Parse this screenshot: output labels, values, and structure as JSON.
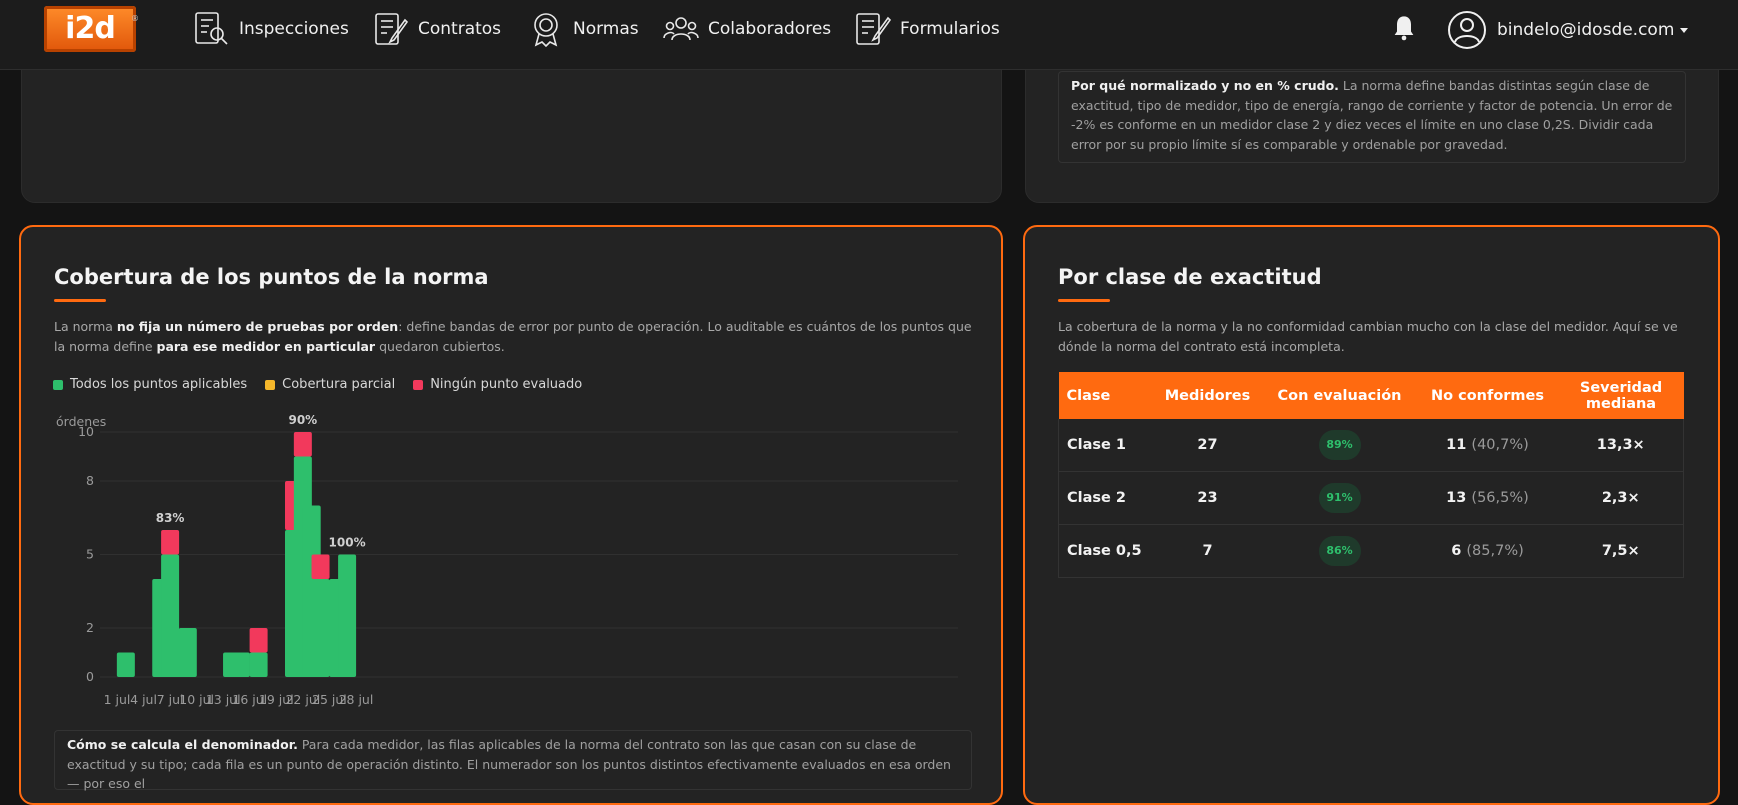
{
  "nav": {
    "logo": "i2d",
    "items": [
      {
        "label": "Inspecciones",
        "icon": "inspection-icon"
      },
      {
        "label": "Contratos",
        "icon": "contract-icon"
      },
      {
        "label": "Normas",
        "icon": "award-icon"
      },
      {
        "label": "Colaboradores",
        "icon": "people-icon"
      },
      {
        "label": "Formularios",
        "icon": "form-icon"
      }
    ],
    "user_email": "bindelo@idosde.com"
  },
  "top_right_note": {
    "bold": "Por qué normalizado y no en % crudo.",
    "text": " La norma define bandas distintas según clase de exactitud, tipo de medidor, tipo de energía, rango de corriente y factor de potencia. Un error de -2% es conforme en un medidor clase 2 y diez veces el límite en uno clase 0,2S. Dividir cada error por su propio límite sí es comparable y ordenable por gravedad."
  },
  "coverage_card": {
    "title": "Cobertura de los puntos de la norma",
    "desc_1": "La norma ",
    "desc_b1": "no fija un número de pruebas por orden",
    "desc_2": ": define bandas de error por punto de operación. Lo auditable es cuántos de los puntos que la norma define ",
    "desc_b2": "para ese medidor en particular",
    "desc_3": " quedaron cubiertos.",
    "legend": [
      {
        "label": "Todos los puntos aplicables",
        "color": "#2ebf6c"
      },
      {
        "label": "Cobertura parcial",
        "color": "#f5b72b"
      },
      {
        "label": "Ningún punto evaluado",
        "color": "#f2395c"
      }
    ],
    "note_bold": "Cómo se calcula el denominador.",
    "note_text": " Para cada medidor, las filas aplicables de la norma del contrato son las que casan con su clase de exactitud y su tipo; cada fila es un punto de operación distinto. El numerador son los puntos distintos efectivamente evaluados en esa orden — por eso el"
  },
  "chart_data": {
    "type": "bar",
    "stacked": true,
    "ylabel": "órdenes",
    "y_ticks": [
      "0",
      "2",
      "5",
      "8",
      "10"
    ],
    "ylim": [
      0,
      10
    ],
    "x_ticks": [
      "1 jul",
      "4 jul",
      "7 jul",
      "10 jul",
      "13 jul",
      "16 jul",
      "19 jul",
      "22 jul",
      "25 jul",
      "28 jul"
    ],
    "days": [
      2,
      6,
      7,
      8,
      9,
      14,
      15,
      17,
      21,
      22,
      23,
      24,
      26,
      27
    ],
    "series": [
      {
        "name": "Todos los puntos aplicables",
        "color": "#2ebf6c",
        "values": [
          1,
          4,
          5,
          1,
          2,
          1,
          1,
          1,
          6,
          9,
          7,
          4,
          4,
          5
        ]
      },
      {
        "name": "Ningún punto evaluado",
        "color": "#f2395c",
        "values": [
          0,
          0,
          1,
          0,
          0,
          0,
          0,
          1,
          2,
          1,
          0,
          1,
          0,
          0
        ]
      }
    ],
    "annotations": [
      {
        "day": 7,
        "label": "83%"
      },
      {
        "day": 22,
        "label": "90%"
      },
      {
        "day": 27,
        "label": "100%"
      }
    ]
  },
  "accuracy_card": {
    "title": "Por clase de exactitud",
    "desc": "La cobertura de la norma y la no conformidad cambian mucho con la clase del medidor. Aquí se ve dónde la norma del contrato está incompleta.",
    "headers": [
      "Clase",
      "Medidores",
      "Con evaluación",
      "No conformes",
      "Severidad mediana"
    ],
    "rows": [
      {
        "clase": "Clase 1",
        "medidores": "27",
        "eval": "89%",
        "nc": "11",
        "nc_pct": "(40,7%)",
        "sev": "13,3×"
      },
      {
        "clase": "Clase 2",
        "medidores": "23",
        "eval": "91%",
        "nc": "13",
        "nc_pct": "(56,5%)",
        "sev": "2,3×"
      },
      {
        "clase": "Clase 0,5",
        "medidores": "7",
        "eval": "86%",
        "nc": "6",
        "nc_pct": "(85,7%)",
        "sev": "7,5×"
      }
    ]
  }
}
